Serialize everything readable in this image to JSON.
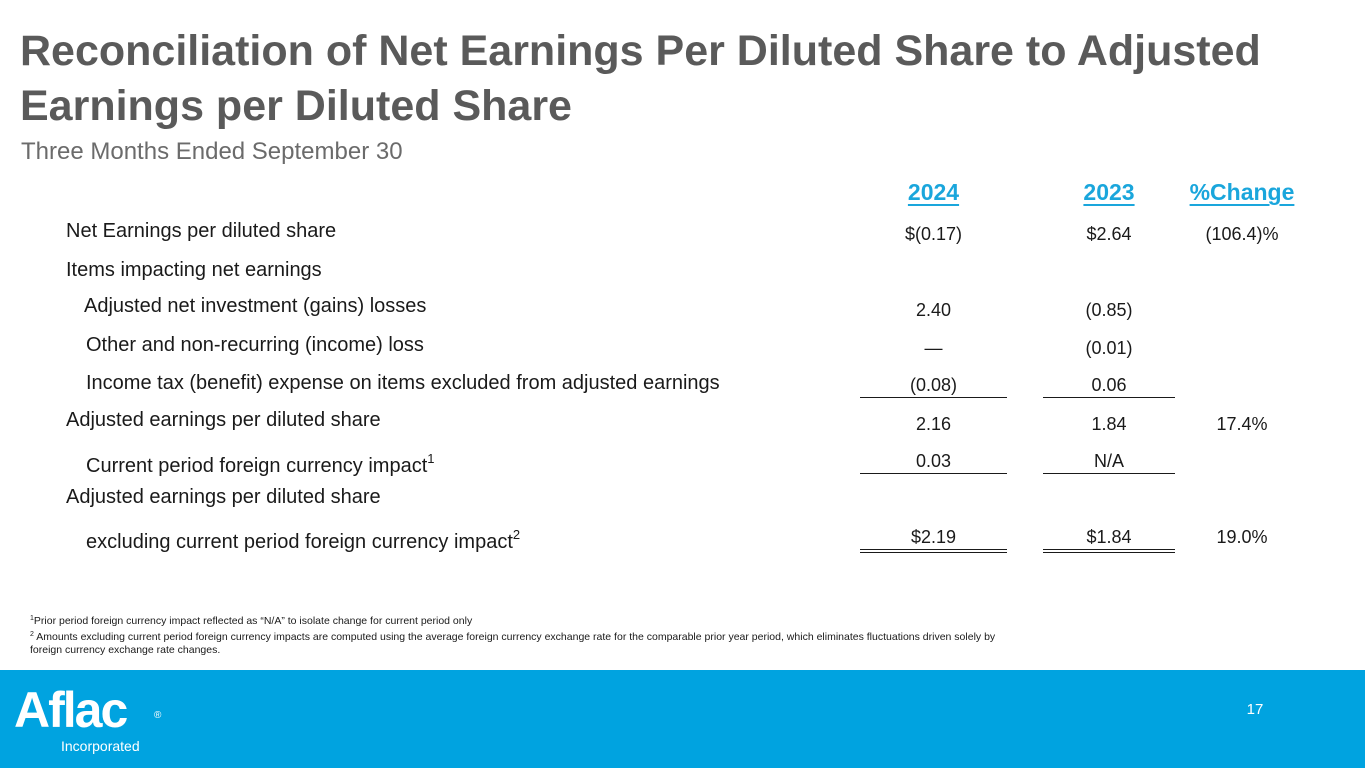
{
  "title": "Reconciliation of Net Earnings Per Diluted Share to Adjusted Earnings per Diluted Share",
  "subtitle": "Three Months Ended September 30",
  "columns": [
    "2024",
    "2023",
    "%Change"
  ],
  "rows": [
    {
      "label": "Net Earnings per diluted share",
      "sup": "",
      "v2024": "$(0.17)",
      "v2023": "$2.64",
      "change": "(106.4)%"
    },
    {
      "label": "Items impacting net earnings",
      "sup": "",
      "v2024": "",
      "v2023": "",
      "change": ""
    },
    {
      "label": "Adjusted net investment (gains) losses",
      "sup": "",
      "v2024": "2.40",
      "v2023": "(0.85)",
      "change": ""
    },
    {
      "label": "Other and non-recurring (income) loss",
      "sup": "",
      "v2024": "—",
      "v2023": "(0.01)",
      "change": ""
    },
    {
      "label": "Income tax (benefit) expense on items excluded from adjusted earnings",
      "sup": "",
      "v2024": "(0.08)",
      "v2023": "0.06",
      "change": ""
    },
    {
      "label": "Adjusted earnings per diluted share",
      "sup": "",
      "v2024": "2.16",
      "v2023": "1.84",
      "change": "17.4%"
    },
    {
      "label": "Current period foreign currency impact",
      "sup": "1",
      "v2024": "0.03",
      "v2023": "N/A",
      "change": ""
    },
    {
      "label": "Adjusted earnings per diluted share",
      "sup": "",
      "v2024": "",
      "v2023": "",
      "change": ""
    },
    {
      "label": "excluding current period foreign currency impact",
      "sup": "2",
      "v2024": "$2.19",
      "v2023": "$1.84",
      "change": "19.0%"
    }
  ],
  "footnotes": {
    "n1_mark": "1",
    "n1_text": "Prior period foreign currency impact reflected as “N/A” to isolate change for current period only",
    "n2_mark": "2",
    "n2_text": " Amounts excluding current period foreign currency impacts are computed using the average foreign currency exchange rate for the comparable prior year period, which eliminates fluctuations driven solely by foreign currency exchange rate changes."
  },
  "footer": {
    "page_number": "17",
    "logo_text": "Aflac",
    "logo_registered": "®",
    "logo_subtext": "Incorporated"
  },
  "colors": {
    "accent": "#1aa6dc",
    "footer_bar": "#00a3e0",
    "title": "#5a5a5a"
  }
}
